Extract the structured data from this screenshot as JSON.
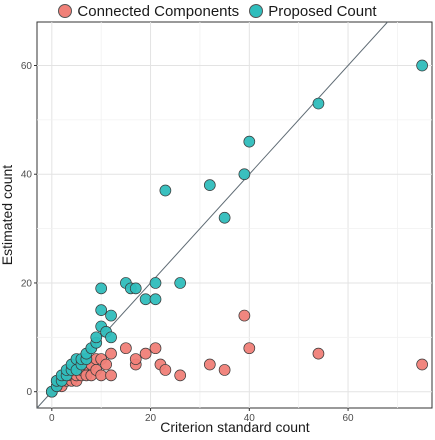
{
  "chart_data": {
    "type": "scatter",
    "xlabel": "Criterion standard count",
    "ylabel": "Estimated count",
    "xlim": [
      -3,
      77
    ],
    "ylim": [
      -3,
      68
    ],
    "xticks": [
      0,
      20,
      40,
      60
    ],
    "yticks": [
      0,
      20,
      40,
      60
    ],
    "grid": true,
    "legend_position": "top",
    "identity_line": true,
    "series": [
      {
        "name": "Connected Components",
        "color": "#F08078",
        "points": [
          [
            0,
            0
          ],
          [
            1,
            1
          ],
          [
            1,
            2
          ],
          [
            2,
            1
          ],
          [
            2,
            2
          ],
          [
            3,
            2
          ],
          [
            3,
            3
          ],
          [
            4,
            2
          ],
          [
            4,
            3
          ],
          [
            5,
            2
          ],
          [
            5,
            3
          ],
          [
            5,
            4
          ],
          [
            6,
            3
          ],
          [
            6,
            4
          ],
          [
            7,
            3
          ],
          [
            7,
            5
          ],
          [
            8,
            3
          ],
          [
            8,
            5
          ],
          [
            9,
            4
          ],
          [
            9,
            6
          ],
          [
            10,
            3
          ],
          [
            10,
            6
          ],
          [
            11,
            5
          ],
          [
            12,
            3
          ],
          [
            12,
            7
          ],
          [
            15,
            8
          ],
          [
            17,
            5
          ],
          [
            17,
            6
          ],
          [
            19,
            7
          ],
          [
            21,
            8
          ],
          [
            22,
            5
          ],
          [
            23,
            4
          ],
          [
            26,
            3
          ],
          [
            32,
            5
          ],
          [
            35,
            4
          ],
          [
            39,
            14
          ],
          [
            40,
            8
          ],
          [
            54,
            7
          ],
          [
            75,
            5
          ]
        ]
      },
      {
        "name": "Proposed Count",
        "color": "#2FBDBC",
        "points": [
          [
            0,
            0
          ],
          [
            1,
            1
          ],
          [
            1,
            2
          ],
          [
            2,
            2
          ],
          [
            2,
            3
          ],
          [
            3,
            3
          ],
          [
            3,
            4
          ],
          [
            4,
            4
          ],
          [
            4,
            5
          ],
          [
            5,
            4
          ],
          [
            5,
            6
          ],
          [
            6,
            5
          ],
          [
            6,
            6
          ],
          [
            7,
            6
          ],
          [
            7,
            7
          ],
          [
            8,
            8
          ],
          [
            9,
            9
          ],
          [
            9,
            10
          ],
          [
            10,
            12
          ],
          [
            10,
            15
          ],
          [
            10,
            19
          ],
          [
            11,
            11
          ],
          [
            12,
            14
          ],
          [
            12,
            10
          ],
          [
            15,
            20
          ],
          [
            16,
            19
          ],
          [
            17,
            19
          ],
          [
            19,
            17
          ],
          [
            21,
            20
          ],
          [
            21,
            17
          ],
          [
            23,
            37
          ],
          [
            26,
            20
          ],
          [
            32,
            38
          ],
          [
            35,
            32
          ],
          [
            39,
            40
          ],
          [
            40,
            46
          ],
          [
            54,
            53
          ],
          [
            75,
            60
          ]
        ]
      }
    ]
  }
}
